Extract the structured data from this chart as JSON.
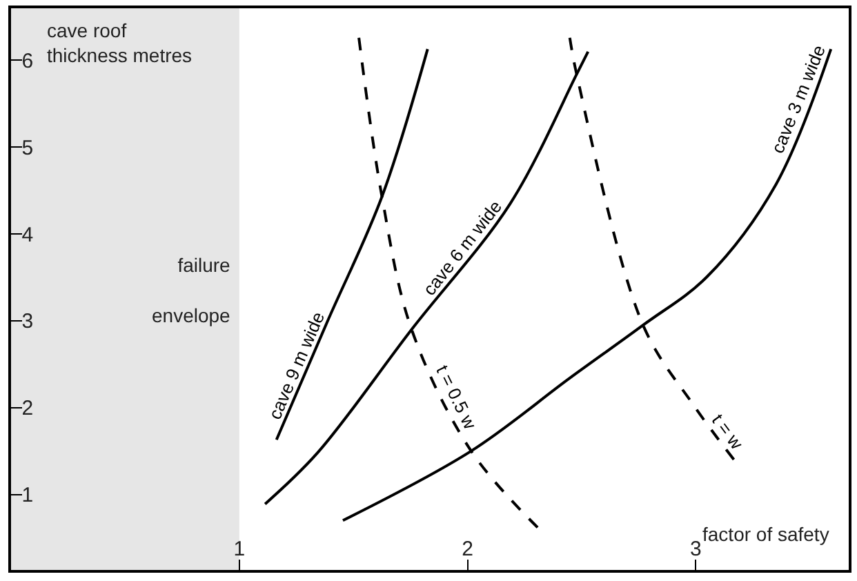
{
  "chart_data": {
    "type": "line",
    "xlabel": "factor of safety",
    "ylabel": "cave roof thickness metres",
    "xlim": [
      0,
      3.67
    ],
    "ylim": [
      0.13,
      6.6
    ],
    "xticks": [
      1,
      2,
      3
    ],
    "yticks": [
      1,
      2,
      3,
      4,
      5,
      6
    ],
    "grid": false,
    "legend": false,
    "marker": "none",
    "bands": [
      {
        "axis": "x",
        "from": 0,
        "to": 1,
        "label": "failure envelope",
        "color": "#e6e6e6"
      }
    ],
    "series": [
      {
        "name": "cave 9 m wide",
        "color": "#000000",
        "line_style": "solid",
        "x": [
          1.163,
          1.384,
          1.625,
          1.825
        ],
        "values": [
          1.63,
          2.98,
          4.43,
          6.13
        ]
      },
      {
        "name": "cave 6 m wide",
        "color": "#000000",
        "line_style": "solid",
        "x": [
          1.113,
          1.343,
          1.755,
          2.187,
          2.478,
          2.528
        ],
        "values": [
          0.89,
          1.48,
          2.9,
          4.35,
          5.84,
          6.1
        ]
      },
      {
        "name": "cave 3 m wide",
        "color": "#000000",
        "line_style": "solid",
        "x": [
          1.454,
          2.016,
          2.448,
          2.769,
          3.05,
          3.351,
          3.592
        ],
        "values": [
          0.7,
          1.5,
          2.34,
          2.95,
          3.51,
          4.57,
          6.13
        ]
      },
      {
        "name": "t = 0.5 w",
        "color": "#000000",
        "line_style": "dashed",
        "x": [
          1.524,
          1.625,
          1.755,
          2.016,
          2.307
        ],
        "values": [
          6.26,
          4.43,
          2.9,
          1.5,
          0.62
        ]
      },
      {
        "name": "t = w",
        "color": "#000000",
        "line_style": "dashed",
        "x": [
          2.448,
          2.478,
          2.769,
          2.99,
          3.17
        ],
        "values": [
          6.26,
          5.84,
          2.95,
          2.03,
          1.39
        ]
      }
    ]
  }
}
